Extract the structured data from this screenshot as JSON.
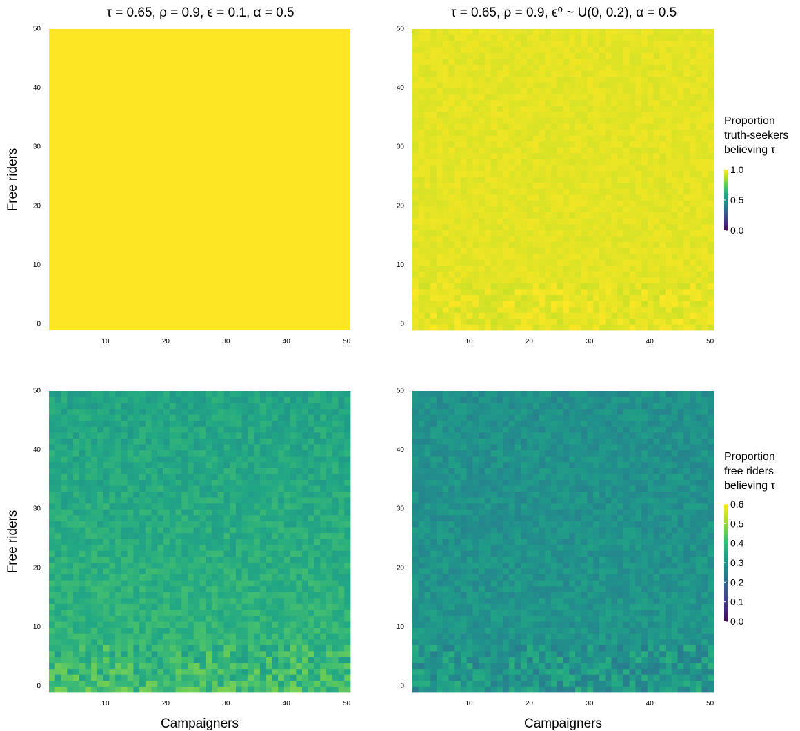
{
  "chart_data": [
    {
      "type": "heatmap",
      "title": "τ = 0.65, ρ = 0.9, ϵ = 0.1, α = 0.5",
      "xlabel": "",
      "ylabel": "Free riders",
      "x_range": [
        1,
        50
      ],
      "y_range": [
        0,
        50
      ],
      "x_ticks": [
        10,
        20,
        30,
        40,
        50
      ],
      "y_ticks": [
        0,
        10,
        20,
        30,
        40,
        50
      ],
      "value_range": [
        0,
        1
      ],
      "approx_cell_values": {
        "overall": 1.0,
        "variation": 0.0
      },
      "colorscale": "viridis"
    },
    {
      "type": "heatmap",
      "title": "τ = 0.65, ρ = 0.9, ϵ⁰ ~ U(0, 0.2), α = 0.5",
      "xlabel": "",
      "ylabel": "",
      "x_range": [
        1,
        50
      ],
      "y_range": [
        0,
        50
      ],
      "x_ticks": [
        10,
        20,
        30,
        40,
        50
      ],
      "y_ticks": [
        0,
        10,
        20,
        30,
        40,
        50
      ],
      "value_range": [
        0,
        1
      ],
      "approx_cell_values": {
        "overall": 0.96,
        "variation": 0.02
      },
      "colorscale": "viridis",
      "legend": {
        "title_lines": [
          "Proportion",
          "truth-seekers",
          "believing τ"
        ],
        "ticks": [
          "1.0",
          "0.5",
          "0.0"
        ],
        "placement": "right"
      }
    },
    {
      "type": "heatmap",
      "title": "",
      "xlabel": "Campaigners",
      "ylabel": "Free riders",
      "x_range": [
        1,
        50
      ],
      "y_range": [
        0,
        50
      ],
      "x_ticks": [
        10,
        20,
        30,
        40,
        50
      ],
      "y_ticks": [
        0,
        10,
        20,
        30,
        40,
        50
      ],
      "value_range": [
        0,
        0.6
      ],
      "approx_cell_values": {
        "top": 0.35,
        "bottom": 0.42,
        "variation": 0.035
      },
      "colorscale": "viridis"
    },
    {
      "type": "heatmap",
      "title": "",
      "xlabel": "Campaigners",
      "ylabel": "",
      "x_range": [
        1,
        50
      ],
      "y_range": [
        0,
        50
      ],
      "x_ticks": [
        10,
        20,
        30,
        40,
        50
      ],
      "y_ticks": [
        0,
        10,
        20,
        30,
        40,
        50
      ],
      "value_range": [
        0,
        0.6
      ],
      "approx_cell_values": {
        "top": 0.3,
        "bottom": 0.32,
        "variation": 0.035
      },
      "colorscale": "viridis",
      "legend": {
        "title_lines": [
          "Proportion",
          "free riders",
          "believing τ"
        ],
        "ticks": [
          "0.6",
          "0.5",
          "0.4",
          "0.3",
          "0.2",
          "0.1",
          "0.0"
        ],
        "placement": "right"
      }
    }
  ]
}
